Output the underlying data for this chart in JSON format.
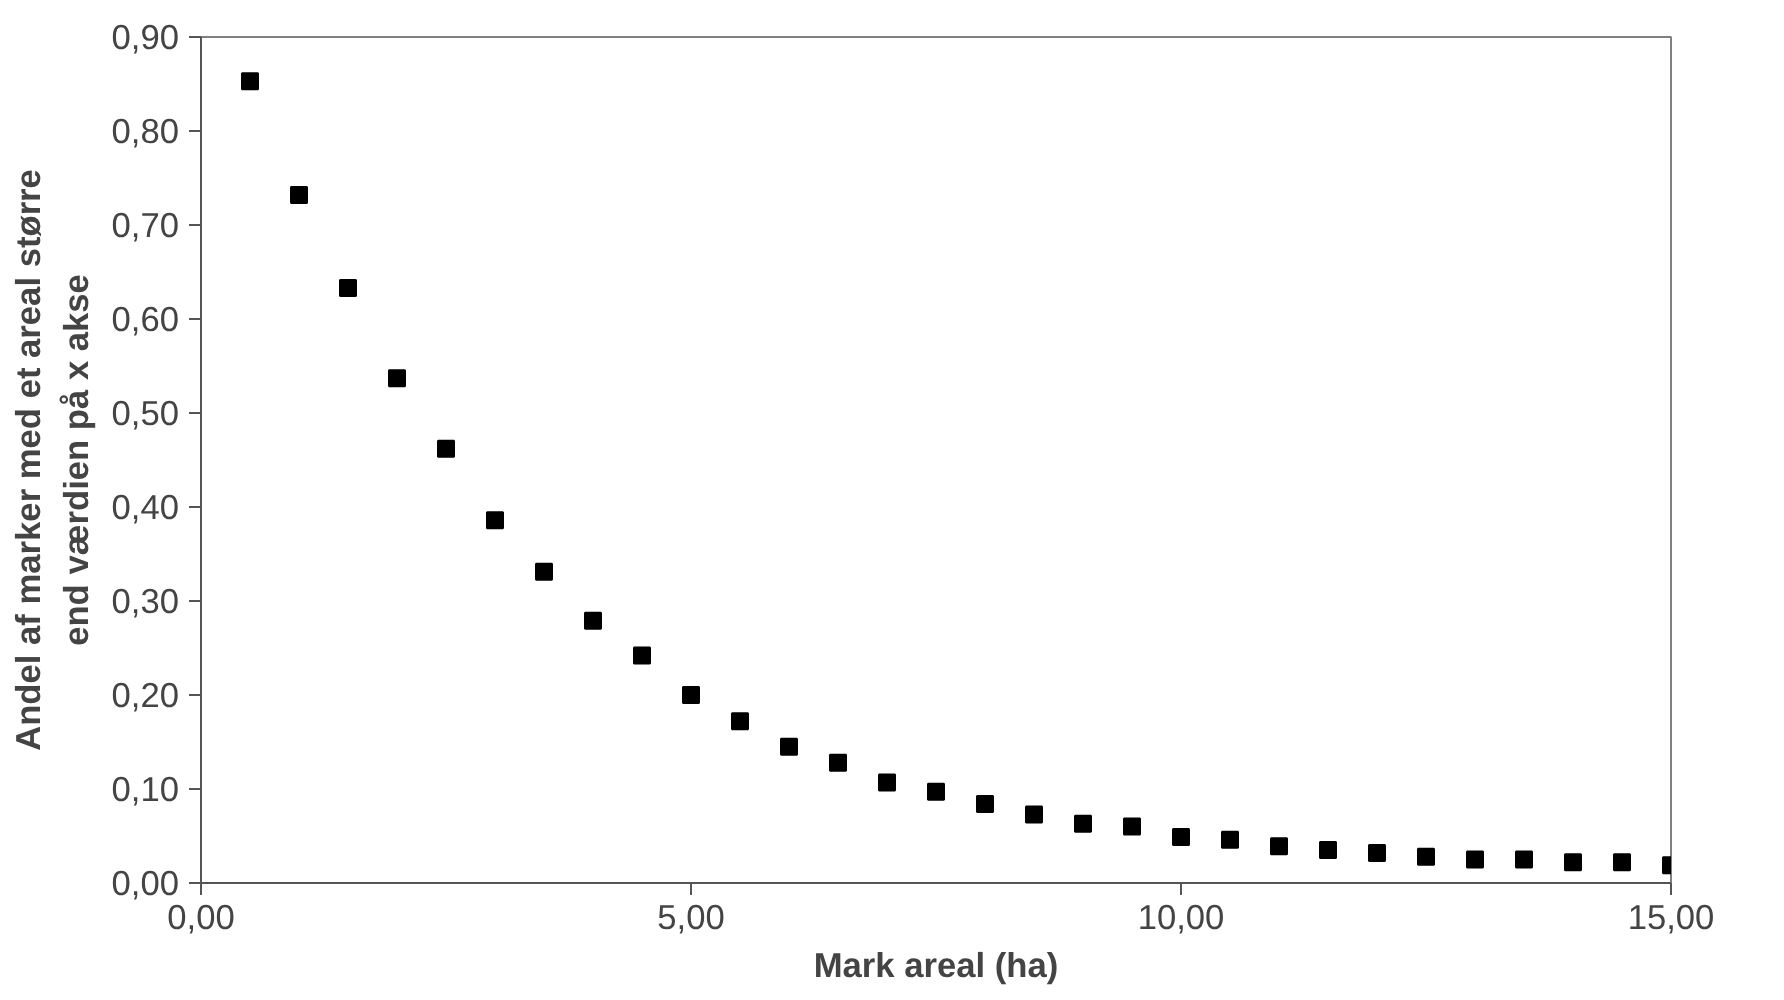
{
  "chart_data": {
    "type": "scatter",
    "xlabel": "Mark areal (ha)",
    "ylabel": "Andel af marker med et areal større\nend værdien på x akse",
    "x": [
      0.5,
      1,
      1.5,
      2,
      2.5,
      3,
      3.5,
      4,
      4.5,
      5,
      5.5,
      6,
      6.5,
      7,
      7.5,
      8,
      8.5,
      9,
      9.5,
      10,
      10.5,
      11,
      11.5,
      12,
      12.5,
      13,
      13.5,
      14,
      14.5,
      15
    ],
    "series": [
      {
        "color": "#000000",
        "values": [
          0.853,
          0.732,
          0.633,
          0.537,
          0.462,
          0.386,
          0.331,
          0.279,
          0.242,
          0.2,
          0.172,
          0.145,
          0.128,
          0.107,
          0.097,
          0.084,
          0.073,
          0.063,
          0.06,
          0.049,
          0.046,
          0.039,
          0.035,
          0.032,
          0.028,
          0.025,
          0.025,
          0.022,
          0.022,
          0.019
        ]
      }
    ],
    "xlim": [
      0,
      15
    ],
    "ylim": [
      0,
      0.9
    ],
    "xticks": [
      {
        "value": 0,
        "label": "0,00"
      },
      {
        "value": 5,
        "label": "5,00"
      },
      {
        "value": 10,
        "label": "10,00"
      },
      {
        "value": 15,
        "label": "15,00"
      }
    ],
    "yticks": [
      {
        "value": 0,
        "label": "0,00"
      },
      {
        "value": 0.1,
        "label": "0,10"
      },
      {
        "value": 0.2,
        "label": "0,20"
      },
      {
        "value": 0.3,
        "label": "0,30"
      },
      {
        "value": 0.4,
        "label": "0,40"
      },
      {
        "value": 0.5,
        "label": "0,50"
      },
      {
        "value": 0.6,
        "label": "0,60"
      },
      {
        "value": 0.7,
        "label": "0,70"
      },
      {
        "value": 0.8,
        "label": "0,80"
      },
      {
        "value": 0.9,
        "label": "0,90"
      }
    ],
    "grid": false,
    "marker": "square"
  }
}
